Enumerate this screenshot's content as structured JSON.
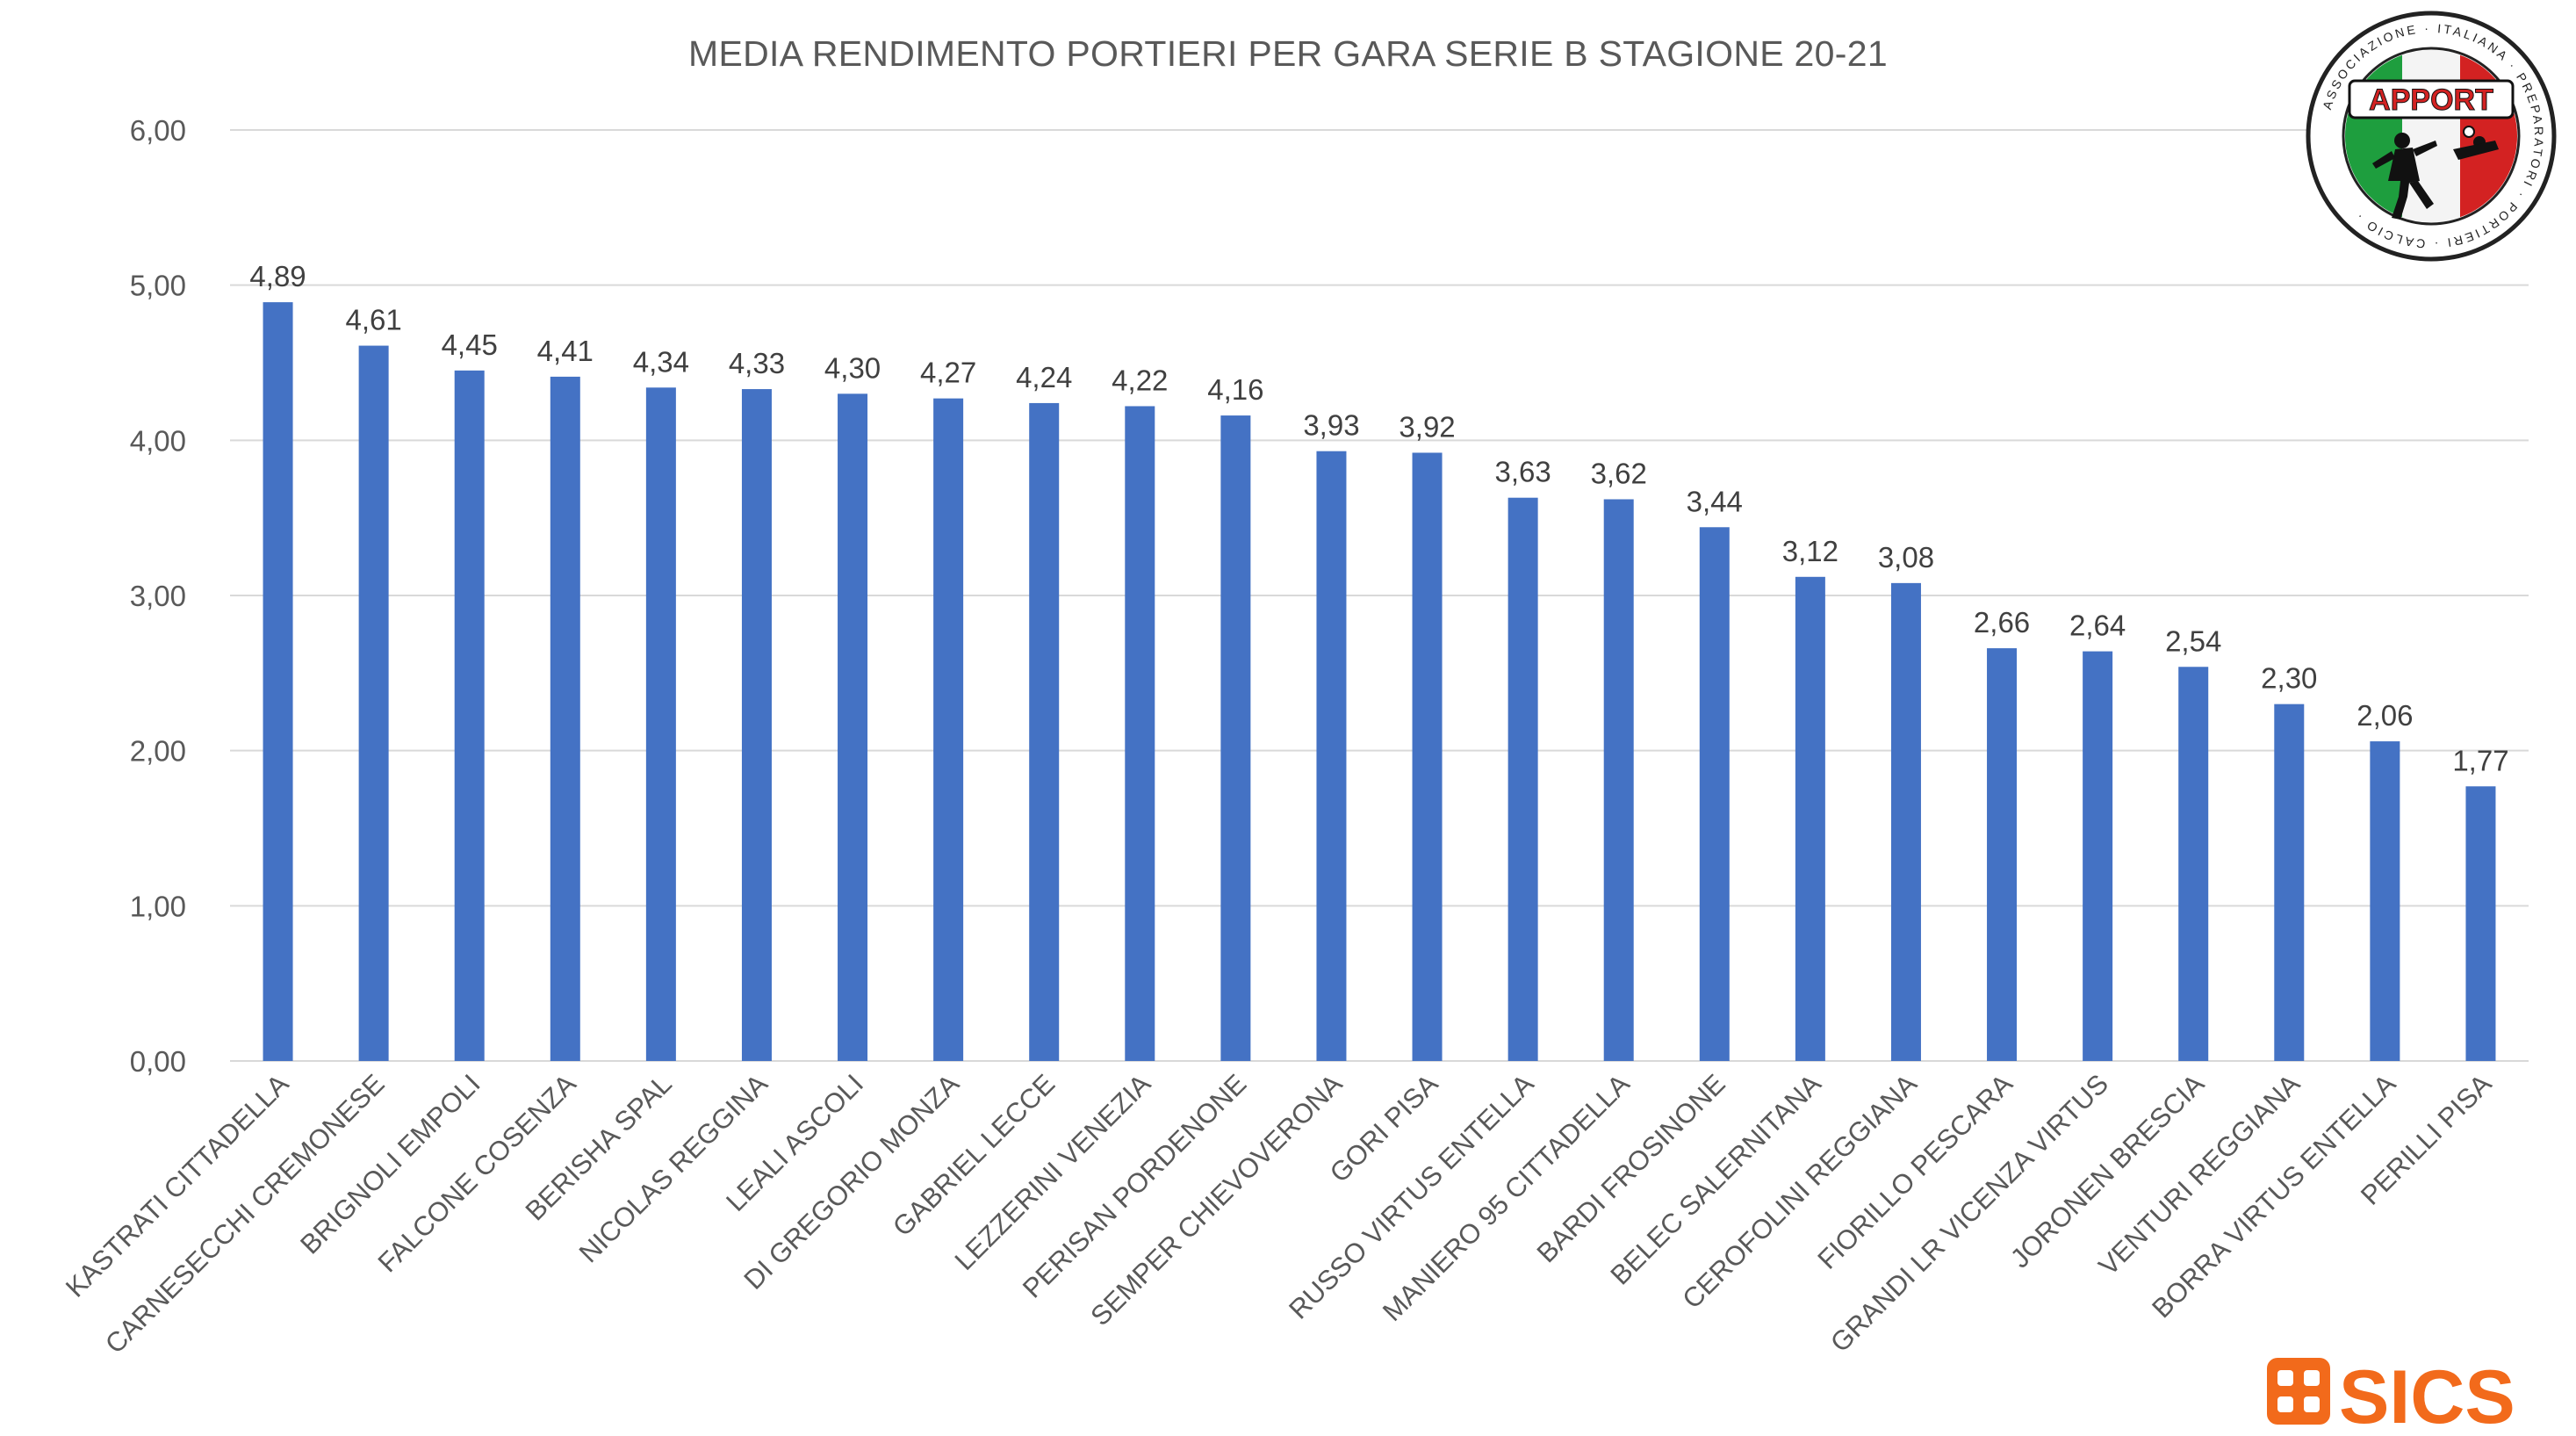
{
  "chart_data": {
    "type": "bar",
    "title": "MEDIA RENDIMENTO PORTIERI PER GARA SERIE B STAGIONE 20-21",
    "xlabel": "",
    "ylabel": "",
    "ylim": [
      0,
      6
    ],
    "yticks": [
      "0,00",
      "1,00",
      "2,00",
      "3,00",
      "4,00",
      "5,00",
      "6,00"
    ],
    "grid": true,
    "legend": "none",
    "bar_color": "#4472C4",
    "categories": [
      "KASTRATI CITTADELLA",
      "CARNESECCHI CREMONESE",
      "BRIGNOLI EMPOLI",
      "FALCONE COSENZA",
      "BERISHA SPAL",
      "NICOLAS REGGINA",
      "LEALI ASCOLI",
      "DI GREGORIO MONZA",
      "GABRIEL LECCE",
      "LEZZERINI VENEZIA",
      "PERISAN PORDENONE",
      "SEMPER CHIEVOVERONA",
      "GORI PISA",
      "RUSSO VIRTUS ENTELLA",
      "MANIERO 95 CITTADELLA",
      "BARDI FROSINONE",
      "BELEC SALERNITANA",
      "CEROFOLINI REGGIANA",
      "FIORILLO PESCARA",
      "GRANDI LR VICENZA VIRTUS",
      "JORONEN BRESCIA",
      "VENTURI REGGIANA",
      "BORRA VIRTUS ENTELLA",
      "PERILLI PISA"
    ],
    "values": [
      4.89,
      4.61,
      4.45,
      4.41,
      4.34,
      4.33,
      4.3,
      4.27,
      4.24,
      4.22,
      4.16,
      3.93,
      3.92,
      3.63,
      3.62,
      3.44,
      3.12,
      3.08,
      2.66,
      2.64,
      2.54,
      2.3,
      2.06,
      1.77
    ],
    "data_labels": [
      "4,89",
      "4,61",
      "4,45",
      "4,41",
      "4,34",
      "4,33",
      "4,30",
      "4,27",
      "4,24",
      "4,22",
      "4,16",
      "3,93",
      "3,92",
      "3,63",
      "3,62",
      "3,44",
      "3,12",
      "3,08",
      "2,66",
      "2,64",
      "2,54",
      "2,30",
      "2,06",
      "1,77"
    ]
  },
  "logos": {
    "apport": {
      "text": "APPORT",
      "ring_text": "ASSOCIAZIONE ITALIANA PREPARATORI PORTIERI CALCIO",
      "colors": [
        "#1e9e3e",
        "#ffffff",
        "#d32222"
      ]
    },
    "sics": {
      "text": "SICS",
      "color": "#f26a1b"
    }
  }
}
